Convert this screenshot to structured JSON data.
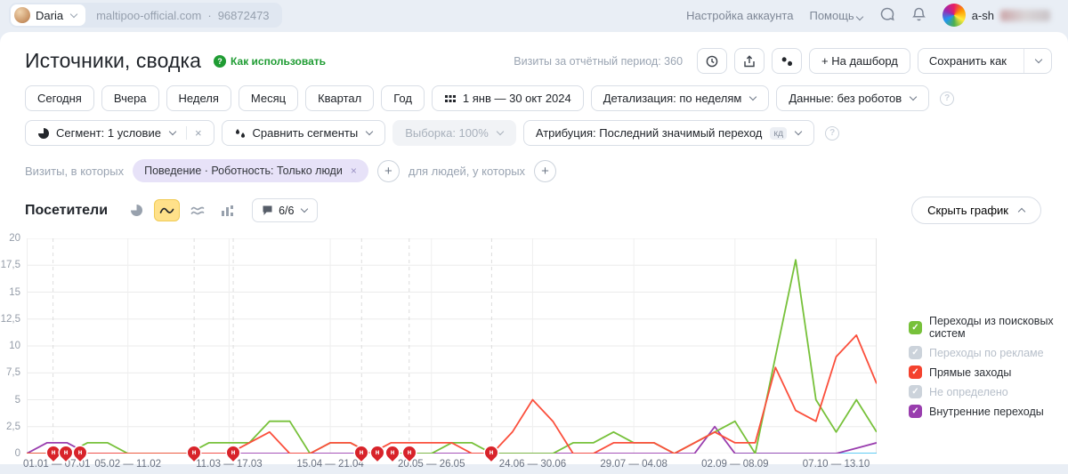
{
  "topbar": {
    "user_name": "Daria",
    "site_domain": "maltipoo-official.com",
    "separator": "·",
    "counter_id": "96872473",
    "account_settings": "Настройка аккаунта",
    "help_label": "Помощь",
    "profile_name": "a-sh"
  },
  "header": {
    "title": "Источники, сводка",
    "how_to_use": "Как использовать",
    "how_to_use_glyph": "?",
    "visits_period": "Визиты за отчётный период: 360",
    "to_dashboard": "+ На дашборд",
    "save_as": "Сохранить как"
  },
  "period_bar": {
    "presets": [
      "Сегодня",
      "Вчера",
      "Неделя",
      "Месяц",
      "Квартал",
      "Год"
    ],
    "date_range": "1 янв — 30 окт 2024",
    "detalization": "Детализация: по неделям",
    "data_filter": "Данные: без роботов"
  },
  "segment_bar": {
    "segment": "Сегмент: 1 условие",
    "segment_close": "×",
    "compare": "Сравнить сегменты",
    "sampling": "Выборка: 100%",
    "attribution": "Атрибуция: Последний значимый переход",
    "attribution_badge": "кд",
    "info_glyph": "?"
  },
  "filter_bar": {
    "visits_in_which": "Визиты, в которых",
    "active_filter": "Поведение · Роботность: Только люди",
    "filter_close": "×",
    "plus": "+",
    "for_people": "для людей, у которых"
  },
  "chart_header": {
    "metric_title": "Посетители",
    "annotations_badge": "6/6",
    "hide_chart": "Скрыть график"
  },
  "legend": {
    "check_glyph": "✓",
    "items": [
      {
        "label": "Переходы из поисковых систем",
        "color": "#77c13a",
        "enabled": true
      },
      {
        "label": "Переходы по рекламе",
        "color": "#ccd3db",
        "enabled": false
      },
      {
        "label": "Прямые заходы",
        "color": "#f4422e",
        "enabled": true
      },
      {
        "label": "Не определено",
        "color": "#ccd3db",
        "enabled": false
      },
      {
        "label": "Внутренние переходы",
        "color": "#993dae",
        "enabled": true
      }
    ]
  },
  "chart_data": {
    "type": "line",
    "title": "Посетители",
    "xlabel": "",
    "ylabel": "",
    "ylim": [
      0,
      20
    ],
    "n_points": 43,
    "grid": true,
    "legend_position": "right",
    "y_ticks": [
      0,
      2.5,
      5,
      7.5,
      10,
      12.5,
      15,
      17.5,
      20
    ],
    "y_tick_labels": [
      "0",
      "2,5",
      "5",
      "7,5",
      "10",
      "12,5",
      "15",
      "17,5",
      "20"
    ],
    "x_tick_indices": [
      0,
      5,
      10,
      15,
      20,
      25,
      30,
      35,
      40
    ],
    "x_tick_labels": [
      "01.01 — 07.01",
      "05.02 — 11.02",
      "11.03 — 17.03",
      "15.04 — 21.04",
      "20.05 — 26.05",
      "24.06 — 30.06",
      "29.07 — 04.08",
      "02.09 — 08.09",
      "07.10 — 13.10"
    ],
    "series": [
      {
        "name": "Не определено (нулевая линия)",
        "color": "#49c4f2",
        "segments": [
          [
            0,
            4
          ],
          [
            35,
            42
          ]
        ]
      },
      {
        "name": "Внутренние переходы",
        "color": "#993dae",
        "values": [
          0,
          1,
          1,
          0,
          0,
          0,
          0,
          0,
          0,
          0,
          0,
          0,
          0,
          0,
          0,
          0,
          0,
          0,
          0,
          0,
          0,
          0,
          0,
          0,
          0,
          0,
          0,
          0,
          0,
          0,
          0,
          0,
          0,
          0,
          2.5,
          0,
          0,
          0,
          0,
          0,
          0,
          0.5,
          1
        ]
      },
      {
        "name": "Переходы из поисковых систем",
        "color": "#77c13a",
        "values": [
          0,
          0,
          0,
          1,
          1,
          0,
          0,
          0,
          0,
          1,
          1,
          1,
          3,
          3,
          0,
          1,
          1,
          0,
          0,
          0,
          0,
          1,
          1,
          0,
          0,
          0,
          0,
          1,
          1,
          2,
          1,
          1,
          0,
          1,
          2,
          3,
          0,
          9,
          18,
          5,
          2,
          5,
          2
        ]
      },
      {
        "name": "Прямые заходы",
        "color": "#fb4f3c",
        "values": [
          0,
          0,
          0,
          0,
          0,
          0,
          0,
          0,
          0,
          0,
          0,
          1,
          2,
          0,
          0,
          1,
          1,
          0,
          1,
          1,
          1,
          1,
          0,
          0,
          2,
          5,
          3,
          0,
          0,
          1,
          1,
          1,
          0,
          1,
          2,
          1,
          1,
          8,
          4,
          3,
          9,
          11,
          6.5
        ]
      }
    ],
    "dashed_gridlines_pct": [
      3.1,
      19.7,
      24.3,
      39.4,
      45.0,
      54.7
    ],
    "annotation_markers": [
      {
        "pos_pct": 3.1,
        "glyph": "н"
      },
      {
        "pos_pct": 4.6,
        "glyph": "н"
      },
      {
        "pos_pct": 6.3,
        "glyph": "н"
      },
      {
        "pos_pct": 19.7,
        "glyph": "н"
      },
      {
        "pos_pct": 24.3,
        "glyph": "н"
      },
      {
        "pos_pct": 39.4,
        "glyph": "н"
      },
      {
        "pos_pct": 41.3,
        "glyph": "н"
      },
      {
        "pos_pct": 43.0,
        "glyph": "н"
      },
      {
        "pos_pct": 45.0,
        "glyph": "н"
      },
      {
        "pos_pct": 54.7,
        "glyph": "н"
      }
    ]
  }
}
